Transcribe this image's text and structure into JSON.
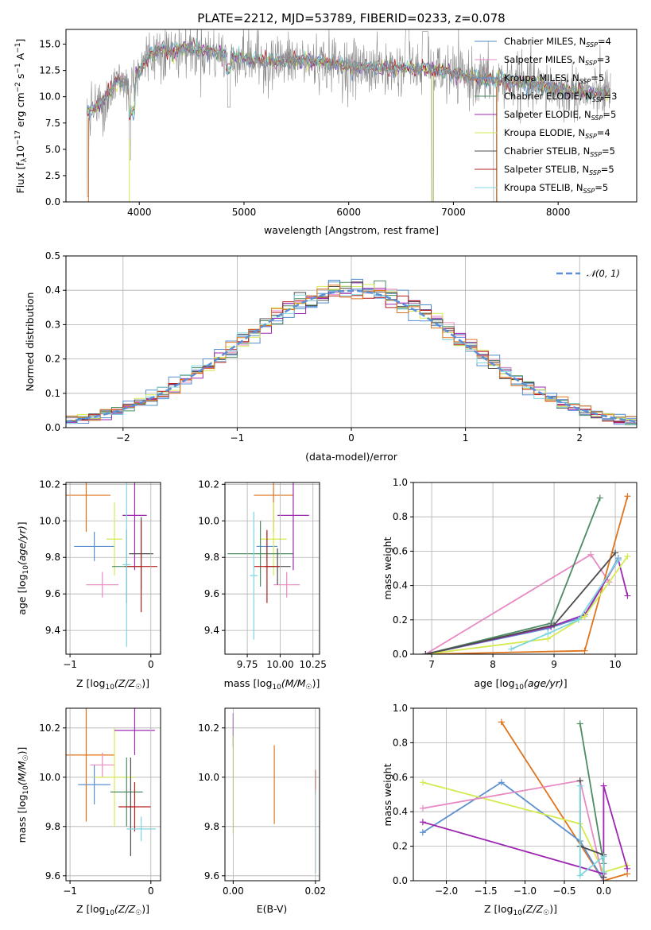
{
  "colors": {
    "Chabrier MILES": "#4f8cc9",
    "Salpeter MILES": "#e78ac3",
    "Kroupa MILES": "#5b8fcf",
    "Chabrier ELODIE": "#4d8b62",
    "Salpeter ELODIE": "#9c27b0",
    "Kroupa ELODIE": "#d4ea4f",
    "Chabrier STELIB": "#4d4d4d",
    "Salpeter STELIB": "#b71c1c",
    "Kroupa STELIB": "#7fd6df",
    "orange": "#e0741c",
    "gauss": "#5b8fd6"
  },
  "chart_data": [
    {
      "id": "spectrum",
      "type": "line",
      "title": "PLATE=2212, MJD=53789, FIBERID=0233, z=0.078",
      "xlabel": "wavelength [Angstrom, rest frame]",
      "ylabel": "Flux [f",
      "xlim": [
        3300,
        8750
      ],
      "ylim": [
        0,
        16.4
      ],
      "xticks": [
        4000,
        5000,
        6000,
        7000,
        8000
      ],
      "yticks": [
        0.0,
        2.5,
        5.0,
        7.5,
        10.0,
        12.5,
        15.0
      ],
      "grid": false,
      "legend": [
        {
          "text": "Chabrier MILES, N",
          "n": "4"
        },
        {
          "text": "Salpeter MILES, N",
          "n": "3"
        },
        {
          "text": "Kroupa MILES, N",
          "n": "5"
        },
        {
          "text": "Chabrier ELODIE, N",
          "n": "3"
        },
        {
          "text": "Salpeter ELODIE, N",
          "n": "5"
        },
        {
          "text": "Kroupa ELODIE, N",
          "n": "4"
        },
        {
          "text": "Chabrier STELIB, N",
          "n": "5"
        },
        {
          "text": "Salpeter STELIB, N",
          "n": "5"
        },
        {
          "text": "Kroupa STELIB, N",
          "n": "5"
        }
      ],
      "legend_sub": "SSP",
      "continuum_points": [
        [
          3500,
          8.5
        ],
        [
          3600,
          9.0
        ],
        [
          3700,
          10.2
        ],
        [
          3800,
          11.5
        ],
        [
          3900,
          11.0
        ],
        [
          4000,
          12.5
        ],
        [
          4100,
          14.0
        ],
        [
          4200,
          14.5
        ],
        [
          4300,
          14.2
        ],
        [
          4400,
          14.6
        ],
        [
          4500,
          14.5
        ],
        [
          4600,
          14.3
        ],
        [
          4800,
          14.0
        ],
        [
          5000,
          13.6
        ],
        [
          5200,
          13.3
        ],
        [
          5500,
          13.4
        ],
        [
          5800,
          13.2
        ],
        [
          6000,
          12.9
        ],
        [
          6200,
          12.7
        ],
        [
          6400,
          12.6
        ],
        [
          6600,
          12.6
        ],
        [
          6800,
          12.5
        ],
        [
          7000,
          12.1
        ],
        [
          7200,
          11.8
        ],
        [
          7400,
          11.5
        ],
        [
          7600,
          11.4
        ],
        [
          7800,
          11.0
        ],
        [
          8000,
          10.6
        ],
        [
          8200,
          10.5
        ],
        [
          8300,
          10.2
        ],
        [
          8500,
          10.4
        ]
      ]
    },
    {
      "id": "residuals",
      "type": "line",
      "xlabel": "(data-model)/error",
      "ylabel": "Normed distribution",
      "xlim": [
        -2.5,
        2.5
      ],
      "ylim": [
        0,
        0.5
      ],
      "xticks": [
        -2,
        -1,
        0,
        1,
        2
      ],
      "yticks": [
        0.0,
        0.1,
        0.2,
        0.3,
        0.4,
        0.5
      ],
      "grid": true,
      "legend": [
        "𝒩(0, 1)"
      ],
      "legend_loc": "top-right"
    },
    {
      "id": "age-vs-Z",
      "type": "scatter",
      "xlabel": "Z [log",
      "ylabel": "age  [log",
      "xlim": [
        -1.05,
        0.12
      ],
      "ylim": [
        9.27,
        10.21
      ],
      "xticks": [
        -1,
        0
      ],
      "yticks": [
        9.4,
        9.6,
        9.8,
        10.0,
        10.2
      ],
      "points": [
        {
          "c": "orange",
          "x": -0.8,
          "y": 10.14,
          "xe": 0.3,
          "ye": 0.2
        },
        {
          "c": "Kroupa MILES",
          "x": -0.7,
          "y": 9.86,
          "xe": 0.25,
          "ye": 0.08
        },
        {
          "c": "Salpeter MILES",
          "x": -0.6,
          "y": 9.65,
          "xe": 0.2,
          "ye": 0.07
        },
        {
          "c": "Kroupa ELODIE",
          "x": -0.45,
          "y": 9.9,
          "xe": 0.1,
          "ye": 0.2
        },
        {
          "c": "Chabrier ELODIE",
          "x": -0.3,
          "y": 9.75,
          "xe": 0.18,
          "ye": 0.2
        },
        {
          "c": "Salpeter ELODIE",
          "x": -0.2,
          "y": 10.03,
          "xe": 0.15,
          "ye": 0.3
        },
        {
          "c": "Chabrier STELIB",
          "x": -0.12,
          "y": 9.82,
          "xe": 0.15,
          "ye": 0.2
        },
        {
          "c": "Salpeter STELIB",
          "x": -0.12,
          "y": 9.75,
          "xe": 0.2,
          "ye": 0.25
        },
        {
          "c": "Kroupa STELIB",
          "x": -0.3,
          "y": 9.76,
          "xe": 0.05,
          "ye": 0.45
        }
      ]
    },
    {
      "id": "age-vs-mass",
      "type": "scatter",
      "xlabel": "mass [log",
      "ylabel": "",
      "xlim": [
        9.58,
        10.3
      ],
      "ylim": [
        9.27,
        10.21
      ],
      "xticks": [
        9.75,
        10.0,
        10.25
      ],
      "yticks": [
        9.4,
        9.6,
        9.8,
        10.0,
        10.2
      ],
      "points": [
        {
          "c": "orange",
          "x": 9.95,
          "y": 10.14,
          "xe": 0.15,
          "ye": 0.2
        },
        {
          "c": "Kroupa MILES",
          "x": 9.9,
          "y": 9.86,
          "xe": 0.08,
          "ye": 0.08
        },
        {
          "c": "Salpeter MILES",
          "x": 10.05,
          "y": 9.65,
          "xe": 0.1,
          "ye": 0.07
        },
        {
          "c": "Kroupa ELODIE",
          "x": 9.95,
          "y": 9.9,
          "xe": 0.1,
          "ye": 0.2
        },
        {
          "c": "Chabrier ELODIE",
          "x": 9.85,
          "y": 9.82,
          "xe": 0.25,
          "ye": 0.18
        },
        {
          "c": "Salpeter ELODIE",
          "x": 10.1,
          "y": 10.03,
          "xe": 0.12,
          "ye": 0.3
        },
        {
          "c": "Chabrier STELIB",
          "x": 9.98,
          "y": 9.75,
          "xe": 0.1,
          "ye": 0.1
        },
        {
          "c": "Salpeter STELIB",
          "x": 9.9,
          "y": 9.75,
          "xe": 0.1,
          "ye": 0.2
        },
        {
          "c": "Kroupa STELIB",
          "x": 9.8,
          "y": 9.7,
          "xe": 0.03,
          "ye": 0.35
        }
      ]
    },
    {
      "id": "weight-vs-age",
      "type": "line",
      "xlabel": "age  [log",
      "ylabel": "mass weight",
      "xlim": [
        6.7,
        10.35
      ],
      "ylim": [
        0,
        1.0
      ],
      "xticks": [
        7,
        8,
        9,
        10
      ],
      "yticks": [
        0.0,
        0.2,
        0.4,
        0.6,
        0.8,
        1.0
      ],
      "grid": true,
      "series": [
        {
          "c": "Salpeter MILES",
          "x": [
            6.9,
            9.6,
            9.9
          ],
          "y": [
            0.0,
            0.58,
            0.42
          ]
        },
        {
          "c": "Chabrier ELODIE",
          "x": [
            6.9,
            8.95,
            9.75
          ],
          "y": [
            0.0,
            0.18,
            0.91
          ]
        },
        {
          "c": "orange",
          "x": [
            6.9,
            9.5,
            10.2
          ],
          "y": [
            0.0,
            0.02,
            0.92
          ]
        },
        {
          "c": "Kroupa MILES",
          "x": [
            6.9,
            8.9,
            9.5,
            10.05
          ],
          "y": [
            0.0,
            0.15,
            0.22,
            0.56
          ]
        },
        {
          "c": "Salpeter ELODIE",
          "x": [
            6.9,
            8.95,
            9.5,
            10.05,
            10.2
          ],
          "y": [
            0.0,
            0.16,
            0.23,
            0.55,
            0.34
          ]
        },
        {
          "c": "Kroupa ELODIE",
          "x": [
            6.9,
            8.9,
            9.5,
            10.2
          ],
          "y": [
            0.0,
            0.09,
            0.22,
            0.57
          ]
        },
        {
          "c": "Chabrier STELIB",
          "x": [
            6.9,
            9.0,
            10.0
          ],
          "y": [
            0.0,
            0.17,
            0.59
          ]
        },
        {
          "c": "Kroupa STELIB",
          "x": [
            8.3,
            8.9,
            9.4,
            10.05
          ],
          "y": [
            0.03,
            0.12,
            0.2,
            0.55
          ]
        }
      ]
    },
    {
      "id": "mass-vs-Z",
      "type": "scatter",
      "xlabel": "Z [log",
      "ylabel": "mass [log",
      "xlim": [
        -1.05,
        0.12
      ],
      "ylim": [
        9.58,
        10.28
      ],
      "xticks": [
        -1,
        0
      ],
      "yticks": [
        9.6,
        9.8,
        10.0,
        10.2
      ],
      "points": [
        {
          "c": "orange",
          "x": -0.8,
          "y": 10.09,
          "xe": 0.35,
          "ye": 0.27
        },
        {
          "c": "Kroupa MILES",
          "x": -0.7,
          "y": 9.97,
          "xe": 0.2,
          "ye": 0.08
        },
        {
          "c": "Salpeter MILES",
          "x": -0.6,
          "y": 10.05,
          "xe": 0.15,
          "ye": 0.05
        },
        {
          "c": "Kroupa ELODIE",
          "x": -0.45,
          "y": 10.0,
          "xe": 0.25,
          "ye": 0.2
        },
        {
          "c": "Chabrier ELODIE",
          "x": -0.3,
          "y": 9.94,
          "xe": 0.2,
          "ye": 0.14
        },
        {
          "c": "Salpeter ELODIE",
          "x": -0.2,
          "y": 10.19,
          "xe": 0.25,
          "ye": 0.1
        },
        {
          "c": "Chabrier STELIB",
          "x": -0.25,
          "y": 9.88,
          "xe": 0.03,
          "ye": 0.2
        },
        {
          "c": "Salpeter STELIB",
          "x": -0.2,
          "y": 9.88,
          "xe": 0.2,
          "ye": 0.1
        },
        {
          "c": "Kroupa STELIB",
          "x": -0.12,
          "y": 9.79,
          "xe": 0.18,
          "ye": 0.05
        }
      ]
    },
    {
      "id": "mass-vs-EBV",
      "type": "scatter",
      "xlabel": "E(B-V)",
      "ylabel": "",
      "xlim": [
        -0.002,
        0.021
      ],
      "ylim": [
        9.58,
        10.28
      ],
      "xticks": [
        0.0,
        0.02
      ],
      "yticks": [
        9.6,
        9.8,
        10.0,
        10.2
      ],
      "points": [
        {
          "c": "Salpeter ELODIE",
          "x": 0.0,
          "y": 10.19,
          "xe": 0,
          "ye": 0.07
        },
        {
          "c": "Kroupa ELODIE",
          "x": 0.0,
          "y": 9.97,
          "xe": 0,
          "ye": 0.2
        },
        {
          "c": "orange",
          "x": 0.01,
          "y": 9.97,
          "xe": 0,
          "ye": 0.16
        },
        {
          "c": "Salpeter STELIB",
          "x": 0.02,
          "y": 9.98,
          "xe": 0,
          "ye": 0.05
        },
        {
          "c": "Kroupa STELIB",
          "x": 0.02,
          "y": 9.78,
          "xe": 0,
          "ye": 0.17
        }
      ]
    },
    {
      "id": "weight-vs-Z",
      "type": "line",
      "xlabel": "Z [log",
      "ylabel": "mass weight",
      "xlim": [
        -2.42,
        0.42
      ],
      "ylim": [
        0,
        1.0
      ],
      "xticks": [
        -2.0,
        -1.5,
        -1.0,
        -0.5,
        0.0
      ],
      "yticks": [
        0.0,
        0.2,
        0.4,
        0.6,
        0.8,
        1.0
      ],
      "grid": true,
      "series": [
        {
          "c": "orange",
          "x": [
            -1.3,
            0.0,
            0.3
          ],
          "y": [
            0.92,
            0.0,
            0.04
          ]
        },
        {
          "c": "Chabrier ELODIE",
          "x": [
            -0.3,
            0.0,
            0.0
          ],
          "y": [
            0.91,
            0.1,
            0.02
          ]
        },
        {
          "c": "Kroupa MILES",
          "x": [
            -2.3,
            -1.3,
            -0.3,
            0.0
          ],
          "y": [
            0.28,
            0.57,
            0.23,
            0.0
          ]
        },
        {
          "c": "Kroupa ELODIE",
          "x": [
            -2.3,
            -0.3,
            0.0,
            0.3
          ],
          "y": [
            0.57,
            0.33,
            0.05,
            0.09
          ]
        },
        {
          "c": "Salpeter MILES",
          "x": [
            -2.3,
            -0.3,
            0.0
          ],
          "y": [
            0.42,
            0.58,
            0.0
          ]
        },
        {
          "c": "Salpeter ELODIE",
          "x": [
            -2.3,
            0.0,
            0.0,
            0.3
          ],
          "y": [
            0.34,
            0.04,
            0.55,
            0.07
          ]
        },
        {
          "c": "Chabrier STELIB",
          "x": [
            -0.3,
            -0.3,
            0.0,
            0.0
          ],
          "y": [
            0.58,
            0.2,
            0.15,
            0.02
          ]
        },
        {
          "c": "Kroupa STELIB",
          "x": [
            -0.3,
            -0.3,
            0.0,
            0.0
          ],
          "y": [
            0.55,
            0.03,
            0.14,
            0.05
          ]
        }
      ]
    }
  ]
}
